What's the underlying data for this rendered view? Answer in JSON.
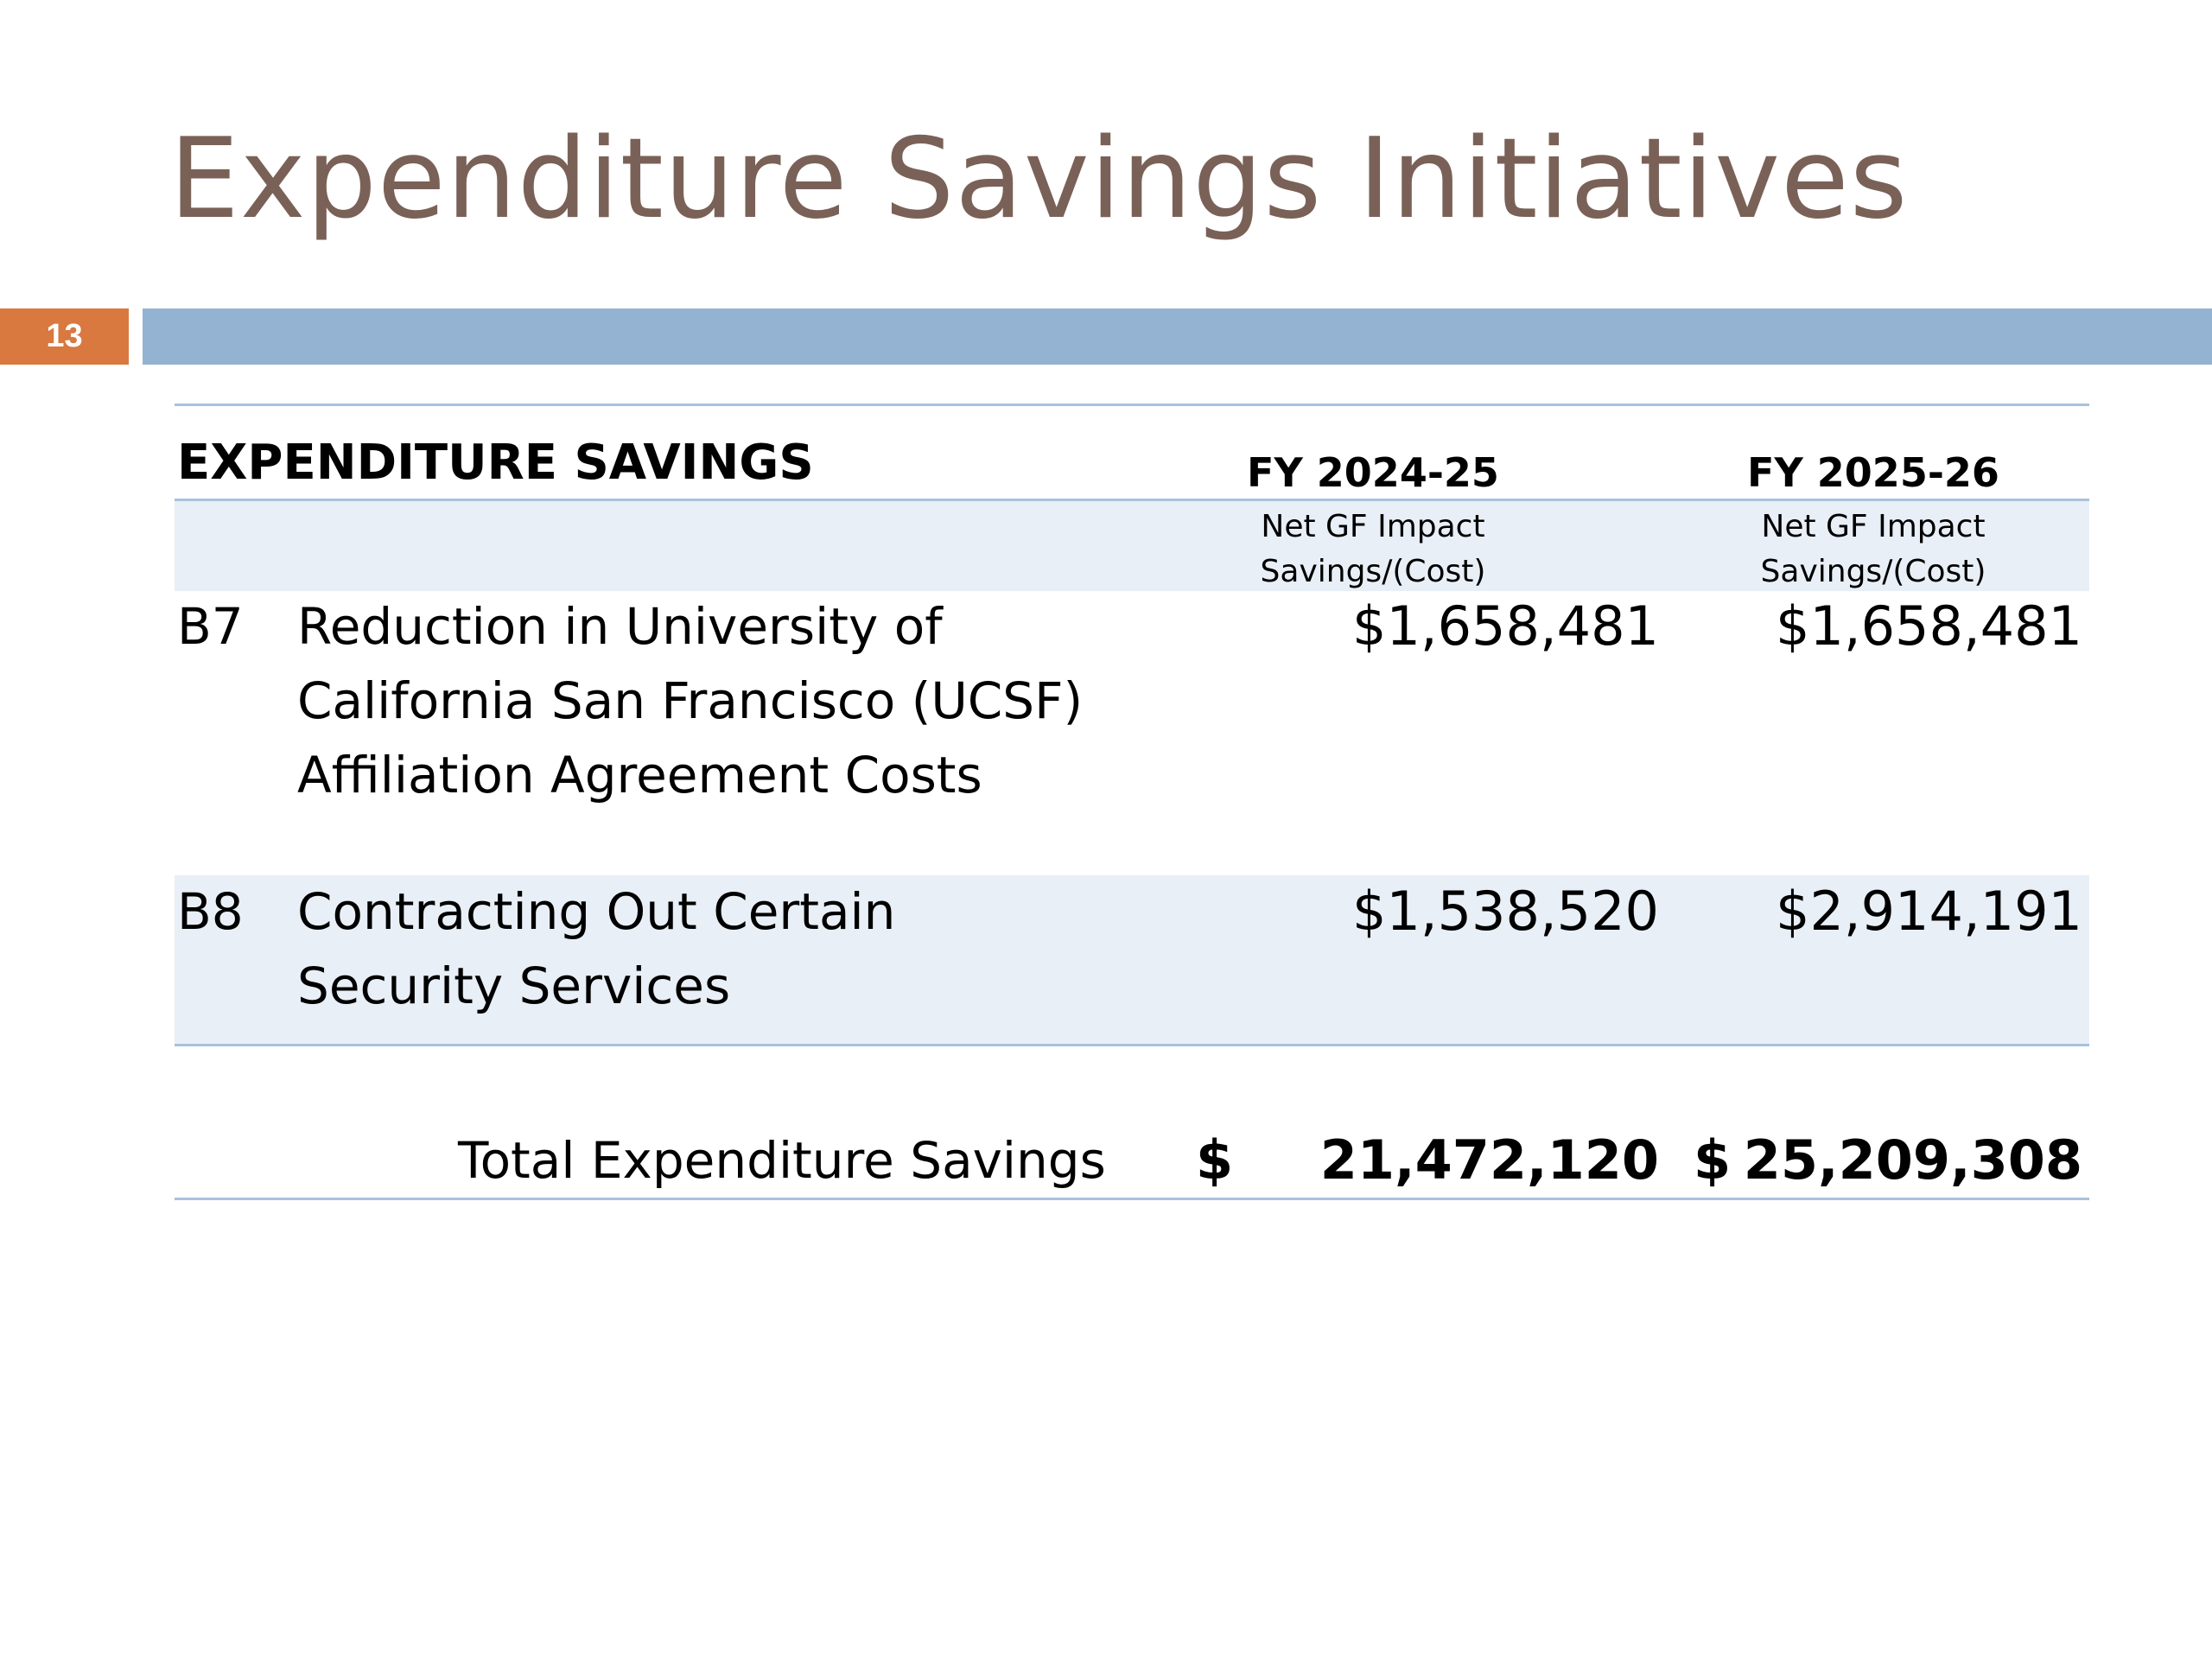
{
  "slide": {
    "title": "Expenditure Savings Initiatives",
    "number": "13"
  },
  "table": {
    "section_heading": "EXPENDITURE SAVINGS",
    "columns": [
      {
        "year": "FY 2024-25",
        "sub_line1": "Net GF Impact",
        "sub_line2": "Savings/(Cost)"
      },
      {
        "year": "FY 2025-26",
        "sub_line1": "Net GF Impact",
        "sub_line2": "Savings/(Cost)"
      }
    ],
    "rows": [
      {
        "code": "B7",
        "description_lines": [
          "Reduction in University of",
          "California San Francisco (UCSF)",
          "Affiliation Agreement Costs"
        ],
        "fy2024_25": "$1,658,481",
        "fy2025_26": "$1,658,481"
      },
      {
        "code": "B8",
        "description_lines": [
          "Contracting Out Certain",
          "Security Services"
        ],
        "fy2024_25": "$1,538,520",
        "fy2025_26": "$2,914,191"
      }
    ],
    "total": {
      "label": "Total Expenditure Savings",
      "currency_symbol": "$",
      "fy2024_25": "21,472,120",
      "fy2025_26": "25,209,308"
    }
  },
  "colors": {
    "title": "#7a6157",
    "slide_number_bg": "#d9783f",
    "accent_bar": "#94b3d3",
    "band": "#e9eff7",
    "rule": "#a9c1dc"
  }
}
